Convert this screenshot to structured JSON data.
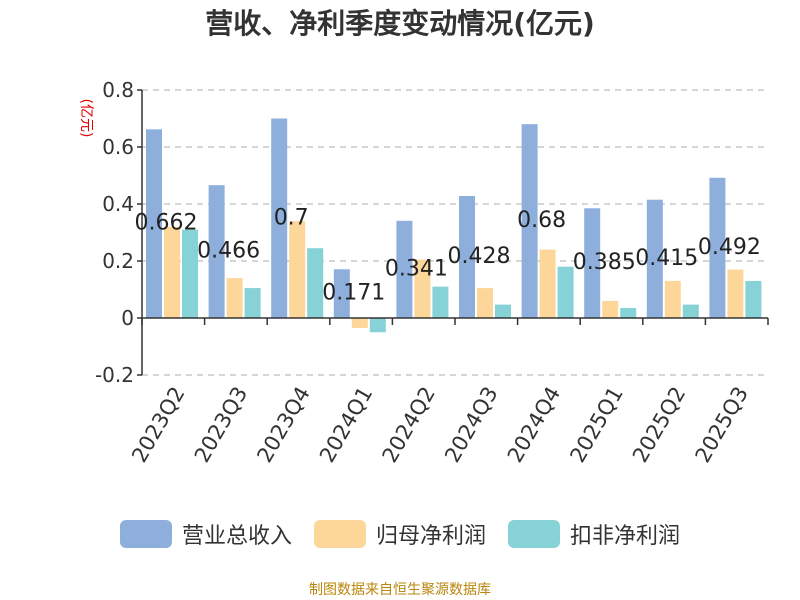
{
  "chart_data": {
    "type": "bar",
    "title": "营收、净利季度变动情况(亿元)",
    "ylabel": "(亿元)",
    "xlabel": "",
    "ylim": [
      -0.2,
      0.8
    ],
    "yticks": [
      -0.2,
      0,
      0.2,
      0.4,
      0.6,
      0.8
    ],
    "ytick_labels": [
      "-0.2",
      "0",
      "0.2",
      "0.4",
      "0.6",
      "0.8"
    ],
    "grid": true,
    "legend_position": "bottom",
    "categories": [
      "2023Q2",
      "2023Q3",
      "2023Q4",
      "2024Q1",
      "2024Q2",
      "2024Q3",
      "2024Q4",
      "2025Q1",
      "2025Q2",
      "2025Q3"
    ],
    "series": [
      {
        "name": "营业总收入",
        "color": "#8eaedc",
        "values": [
          0.662,
          0.466,
          0.7,
          0.171,
          0.341,
          0.428,
          0.68,
          0.385,
          0.415,
          0.492
        ]
      },
      {
        "name": "归母净利润",
        "color": "#fdd79a",
        "values": [
          0.32,
          0.14,
          0.34,
          -0.035,
          0.205,
          0.105,
          0.24,
          0.06,
          0.13,
          0.17
        ]
      },
      {
        "name": "扣非净利润",
        "color": "#86d2d6",
        "values": [
          0.31,
          0.105,
          0.245,
          -0.05,
          0.11,
          0.047,
          0.18,
          0.035,
          0.047,
          0.13
        ]
      }
    ],
    "data_labels": [
      "0.662",
      "0.466",
      "0.7",
      "0.171",
      "0.341",
      "0.428",
      "0.68",
      "0.385",
      "0.415",
      "0.492"
    ]
  },
  "source": "制图数据来自恒生聚源数据库"
}
